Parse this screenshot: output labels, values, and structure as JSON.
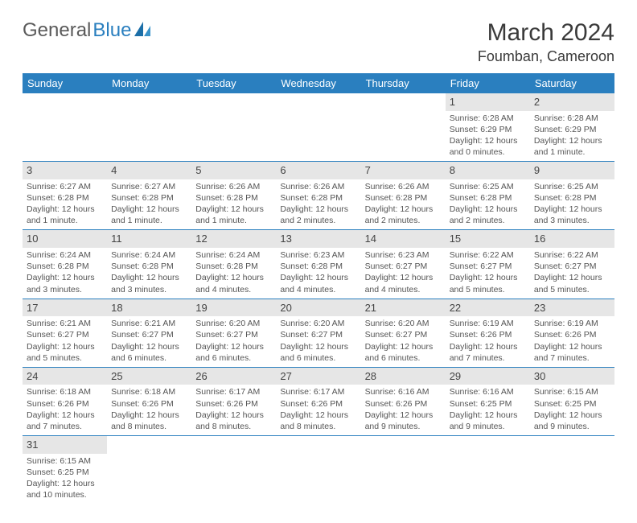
{
  "brand": {
    "general": "General",
    "blue": "Blue"
  },
  "header": {
    "month": "March 2024",
    "location": "Foumban, Cameroon"
  },
  "colors": {
    "accent": "#2a7fbf",
    "shaded": "#e6e6e6",
    "text": "#555555"
  },
  "weekdays": [
    "Sunday",
    "Monday",
    "Tuesday",
    "Wednesday",
    "Thursday",
    "Friday",
    "Saturday"
  ],
  "labels": {
    "sunrise": "Sunrise:",
    "sunset": "Sunset:",
    "daylight": "Daylight:"
  },
  "startWeekdayIndex": 5,
  "days": [
    {
      "n": 1,
      "sunrise": "6:28 AM",
      "sunset": "6:29 PM",
      "daylight": "12 hours and 0 minutes."
    },
    {
      "n": 2,
      "sunrise": "6:28 AM",
      "sunset": "6:29 PM",
      "daylight": "12 hours and 1 minute."
    },
    {
      "n": 3,
      "sunrise": "6:27 AM",
      "sunset": "6:28 PM",
      "daylight": "12 hours and 1 minute."
    },
    {
      "n": 4,
      "sunrise": "6:27 AM",
      "sunset": "6:28 PM",
      "daylight": "12 hours and 1 minute."
    },
    {
      "n": 5,
      "sunrise": "6:26 AM",
      "sunset": "6:28 PM",
      "daylight": "12 hours and 1 minute."
    },
    {
      "n": 6,
      "sunrise": "6:26 AM",
      "sunset": "6:28 PM",
      "daylight": "12 hours and 2 minutes."
    },
    {
      "n": 7,
      "sunrise": "6:26 AM",
      "sunset": "6:28 PM",
      "daylight": "12 hours and 2 minutes."
    },
    {
      "n": 8,
      "sunrise": "6:25 AM",
      "sunset": "6:28 PM",
      "daylight": "12 hours and 2 minutes."
    },
    {
      "n": 9,
      "sunrise": "6:25 AM",
      "sunset": "6:28 PM",
      "daylight": "12 hours and 3 minutes."
    },
    {
      "n": 10,
      "sunrise": "6:24 AM",
      "sunset": "6:28 PM",
      "daylight": "12 hours and 3 minutes."
    },
    {
      "n": 11,
      "sunrise": "6:24 AM",
      "sunset": "6:28 PM",
      "daylight": "12 hours and 3 minutes."
    },
    {
      "n": 12,
      "sunrise": "6:24 AM",
      "sunset": "6:28 PM",
      "daylight": "12 hours and 4 minutes."
    },
    {
      "n": 13,
      "sunrise": "6:23 AM",
      "sunset": "6:28 PM",
      "daylight": "12 hours and 4 minutes."
    },
    {
      "n": 14,
      "sunrise": "6:23 AM",
      "sunset": "6:27 PM",
      "daylight": "12 hours and 4 minutes."
    },
    {
      "n": 15,
      "sunrise": "6:22 AM",
      "sunset": "6:27 PM",
      "daylight": "12 hours and 5 minutes."
    },
    {
      "n": 16,
      "sunrise": "6:22 AM",
      "sunset": "6:27 PM",
      "daylight": "12 hours and 5 minutes."
    },
    {
      "n": 17,
      "sunrise": "6:21 AM",
      "sunset": "6:27 PM",
      "daylight": "12 hours and 5 minutes."
    },
    {
      "n": 18,
      "sunrise": "6:21 AM",
      "sunset": "6:27 PM",
      "daylight": "12 hours and 6 minutes."
    },
    {
      "n": 19,
      "sunrise": "6:20 AM",
      "sunset": "6:27 PM",
      "daylight": "12 hours and 6 minutes."
    },
    {
      "n": 20,
      "sunrise": "6:20 AM",
      "sunset": "6:27 PM",
      "daylight": "12 hours and 6 minutes."
    },
    {
      "n": 21,
      "sunrise": "6:20 AM",
      "sunset": "6:27 PM",
      "daylight": "12 hours and 6 minutes."
    },
    {
      "n": 22,
      "sunrise": "6:19 AM",
      "sunset": "6:26 PM",
      "daylight": "12 hours and 7 minutes."
    },
    {
      "n": 23,
      "sunrise": "6:19 AM",
      "sunset": "6:26 PM",
      "daylight": "12 hours and 7 minutes."
    },
    {
      "n": 24,
      "sunrise": "6:18 AM",
      "sunset": "6:26 PM",
      "daylight": "12 hours and 7 minutes."
    },
    {
      "n": 25,
      "sunrise": "6:18 AM",
      "sunset": "6:26 PM",
      "daylight": "12 hours and 8 minutes."
    },
    {
      "n": 26,
      "sunrise": "6:17 AM",
      "sunset": "6:26 PM",
      "daylight": "12 hours and 8 minutes."
    },
    {
      "n": 27,
      "sunrise": "6:17 AM",
      "sunset": "6:26 PM",
      "daylight": "12 hours and 8 minutes."
    },
    {
      "n": 28,
      "sunrise": "6:16 AM",
      "sunset": "6:26 PM",
      "daylight": "12 hours and 9 minutes."
    },
    {
      "n": 29,
      "sunrise": "6:16 AM",
      "sunset": "6:25 PM",
      "daylight": "12 hours and 9 minutes."
    },
    {
      "n": 30,
      "sunrise": "6:15 AM",
      "sunset": "6:25 PM",
      "daylight": "12 hours and 9 minutes."
    },
    {
      "n": 31,
      "sunrise": "6:15 AM",
      "sunset": "6:25 PM",
      "daylight": "12 hours and 10 minutes."
    }
  ]
}
